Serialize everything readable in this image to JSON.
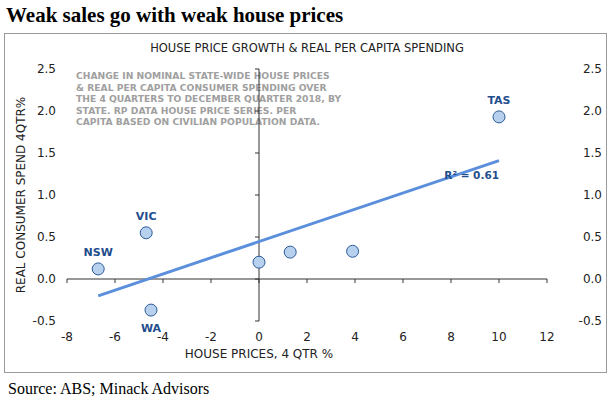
{
  "chart_data": {
    "type": "scatter",
    "title": "Weak sales go with weak house prices",
    "subtitle": "HOUSE PRICE GROWTH & REAL PER CAPITA SPENDING",
    "annotation": [
      "CHANGE IN NOMINAL STATE-WIDE HOUSE PRICES",
      "& REAL PER CAPITA CONSUMER SPENDING OVER",
      "THE 4 QUARTERS TO DECEMBER QUARTER 2018, BY",
      "STATE.  RP DATA HOUSE PRICE SERIES.  PER",
      "CAPITA BASED ON CIVILIAN POPULATION DATA."
    ],
    "x_label": "HOUSE PRICES, 4 QTR %",
    "y_label": "REAL CONSUMER SPEND 4QTR%",
    "source": "Source: ABS; Minack Advisors",
    "x": [
      -6.7,
      -4.7,
      -4.5,
      0.0,
      1.3,
      3.9,
      10.0
    ],
    "values": [
      0.12,
      0.55,
      -0.37,
      0.2,
      0.32,
      0.33,
      1.93
    ],
    "labels": [
      "NSW",
      "VIC",
      "WA",
      null,
      null,
      null,
      "TAS"
    ],
    "color": "#b7d0ee",
    "marker": "circle",
    "trendline": {
      "x": [
        -6.7,
        10.0
      ],
      "values": [
        -0.2,
        1.41
      ],
      "label": "R² = 0.61",
      "color": "#5b8fdb"
    },
    "xlim": [
      -8,
      12
    ],
    "xticks": [
      -8,
      -6,
      -4,
      -2,
      0,
      2,
      4,
      6,
      8,
      10,
      12
    ],
    "ylim": [
      -0.5,
      2.5
    ],
    "yticks": [
      -0.5,
      {
        "value": 0,
        "label": "0.0"
      },
      0.5,
      {
        "value": 1,
        "label": "1.0"
      },
      1.5,
      {
        "value": 2,
        "label": "2.0"
      },
      2.5
    ],
    "y2lim": [
      -0.5,
      2.5
    ],
    "y2ticks": [
      -0.5,
      {
        "value": 0,
        "label": "0.0"
      },
      0.5,
      {
        "value": 1,
        "label": "1.0"
      },
      1.5,
      {
        "value": 2,
        "label": "2.0"
      },
      2.5
    ],
    "grid": false
  }
}
